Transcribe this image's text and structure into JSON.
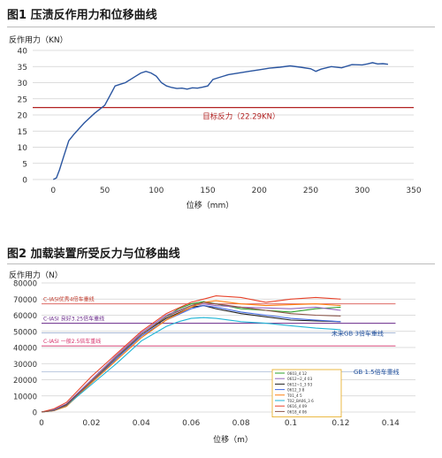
{
  "chart_data": [
    {
      "type": "line",
      "title": "图1   压溃反作用力和位移曲线",
      "ylabel": "反作用力（KN）",
      "xlabel": "位移（mm）",
      "xlim": [
        -20,
        350
      ],
      "ylim": [
        0,
        40
      ],
      "xticks": [
        "0",
        "50",
        "100",
        "150",
        "200",
        "250",
        "300",
        "350"
      ],
      "yticks": [
        "0",
        "5",
        "10",
        "15",
        "20",
        "25",
        "30",
        "35",
        "40"
      ],
      "grid": true,
      "series": [
        {
          "color": "#2a55a0",
          "x": [
            0,
            3,
            6,
            10,
            15,
            20,
            30,
            40,
            50,
            55,
            60,
            65,
            70,
            75,
            80,
            85,
            90,
            95,
            100,
            105,
            110,
            115,
            120,
            125,
            130,
            135,
            140,
            145,
            150,
            155,
            160,
            170,
            180,
            190,
            200,
            210,
            220,
            230,
            240,
            250,
            255,
            260,
            270,
            280,
            290,
            300,
            305,
            310,
            315,
            320,
            325
          ],
          "y": [
            0,
            0.5,
            3,
            7,
            12,
            14,
            17.5,
            20.5,
            23,
            26,
            29,
            29.5,
            30,
            31,
            32,
            33,
            33.5,
            33,
            32,
            30,
            29,
            28.5,
            28.2,
            28.3,
            28,
            28.4,
            28.3,
            28.6,
            29,
            31,
            31.5,
            32.5,
            33,
            33.5,
            34,
            34.5,
            34.8,
            35.2,
            34.8,
            34.3,
            33.5,
            34.2,
            35,
            34.6,
            35.6,
            35.5,
            35.8,
            36.2,
            35.8,
            35.9,
            35.7
          ]
        }
      ],
      "reference_line": {
        "y": 22.29,
        "color": "#b22222",
        "label": "目标反力（22.29KN）"
      }
    },
    {
      "type": "line",
      "title": "图2   加载装置所受反力与位移曲线",
      "ylabel": "反作用力（N）",
      "xlabel": "位移（m）",
      "xlim": [
        0,
        0.15
      ],
      "ylim": [
        0,
        80000
      ],
      "xticks": [
        "0",
        "0.02",
        "0.04",
        "0.06",
        "0.08",
        "0.1",
        "0.12",
        "0.14"
      ],
      "yticks": [
        "0",
        "10000",
        "20000",
        "30000",
        "40000",
        "50000",
        "60000",
        "70000",
        "80000"
      ],
      "grid": true,
      "reference_lines": [
        {
          "y": 67000,
          "color": "#d9534f",
          "label": "C-IASI优秀4倍车重线",
          "label_color": "#c0392b"
        },
        {
          "y": 55000,
          "color": "#6a2a8a",
          "label": "C-IASI 良好3.25倍车重线",
          "label_color": "#6a2a8a"
        },
        {
          "y": 41000,
          "color": "#d6336c",
          "label": "C-IASI 一般2.5倍车重线",
          "label_color": "#d6336c"
        }
      ],
      "annotations": [
        {
          "text": "未来GB 3倍车重线",
          "color": "#1f4e9a"
        },
        {
          "text": "GB 1.5倍车重线",
          "color": "#1f4e9a"
        }
      ],
      "legend": {
        "position": "bottom-right",
        "entries": [
          "0603_4 12",
          "0612~2_4 03",
          "0612~1_3 93",
          "0612_3 8",
          "T01_4 5",
          "T02_BA06_3 6",
          "0616_4 09",
          "0618_4 06"
        ]
      },
      "series": [
        {
          "color": "#2ca02c",
          "x": [
            0,
            0.005,
            0.01,
            0.02,
            0.03,
            0.04,
            0.05,
            0.055,
            0.06,
            0.065,
            0.07,
            0.08,
            0.09,
            0.1,
            0.11,
            0.12
          ],
          "y": [
            0,
            1000,
            4000,
            19000,
            33000,
            48000,
            59000,
            64000,
            67000,
            68500,
            67000,
            64000,
            63000,
            62000,
            64000,
            65000
          ]
        },
        {
          "color": "#9467bd",
          "x": [
            0,
            0.005,
            0.01,
            0.02,
            0.03,
            0.04,
            0.05,
            0.06,
            0.065,
            0.07,
            0.08,
            0.09,
            0.1,
            0.11,
            0.12
          ],
          "y": [
            0,
            1500,
            5000,
            20000,
            35000,
            49000,
            60000,
            66000,
            67000,
            66000,
            65000,
            64500,
            64000,
            65000,
            63000
          ]
        },
        {
          "color": "#222222",
          "x": [
            0,
            0.005,
            0.01,
            0.02,
            0.03,
            0.04,
            0.05,
            0.06,
            0.065,
            0.07,
            0.08,
            0.09,
            0.1,
            0.11,
            0.12
          ],
          "y": [
            0,
            1000,
            4500,
            19000,
            34000,
            48000,
            58000,
            65000,
            66000,
            64000,
            61000,
            59000,
            57000,
            56500,
            56000
          ]
        },
        {
          "color": "#4169e1",
          "x": [
            0,
            0.005,
            0.01,
            0.02,
            0.03,
            0.04,
            0.05,
            0.06,
            0.065,
            0.07,
            0.08,
            0.09,
            0.1,
            0.11,
            0.12
          ],
          "y": [
            0,
            1200,
            4000,
            18000,
            33000,
            47000,
            57000,
            64000,
            66000,
            65000,
            62000,
            60000,
            58000,
            57000,
            56000
          ]
        },
        {
          "color": "#ff7f0e",
          "x": [
            0,
            0.005,
            0.01,
            0.02,
            0.03,
            0.04,
            0.05,
            0.06,
            0.065,
            0.07,
            0.08,
            0.09,
            0.1,
            0.11,
            0.12
          ],
          "y": [
            0,
            800,
            3500,
            18000,
            32000,
            46000,
            57000,
            65000,
            68000,
            69000,
            67000,
            66000,
            66500,
            67000,
            66000
          ]
        },
        {
          "color": "#1fb5d6",
          "x": [
            0,
            0.005,
            0.01,
            0.02,
            0.03,
            0.04,
            0.05,
            0.055,
            0.06,
            0.065,
            0.07,
            0.08,
            0.09,
            0.1,
            0.11,
            0.12
          ],
          "y": [
            0,
            1000,
            4000,
            17000,
            30000,
            44000,
            53000,
            56000,
            58000,
            58500,
            58000,
            56000,
            55000,
            53500,
            52000,
            51000
          ]
        },
        {
          "color": "#e8432b",
          "x": [
            0,
            0.005,
            0.01,
            0.02,
            0.03,
            0.04,
            0.05,
            0.06,
            0.065,
            0.07,
            0.08,
            0.09,
            0.1,
            0.11,
            0.12
          ],
          "y": [
            0,
            2000,
            6000,
            22000,
            36000,
            50000,
            61000,
            68000,
            70000,
            72000,
            71000,
            68000,
            70000,
            71000,
            70000
          ]
        },
        {
          "color": "#8c564b",
          "x": [
            0,
            0.005,
            0.01,
            0.02,
            0.03,
            0.04,
            0.05,
            0.06,
            0.065,
            0.07,
            0.08,
            0.09,
            0.1,
            0.11,
            0.12
          ],
          "y": [
            0,
            900,
            4200,
            19000,
            34000,
            48000,
            59000,
            66000,
            68000,
            67000,
            65000,
            63000,
            61000,
            60000,
            59500
          ]
        }
      ]
    }
  ]
}
